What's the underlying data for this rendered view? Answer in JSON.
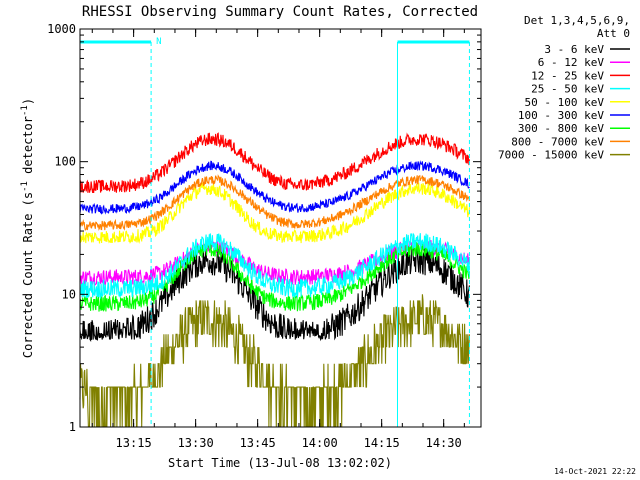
{
  "chart_data": {
    "type": "line",
    "title": "RHESSI Observing Summary Count Rates, Corrected",
    "xlabel": "Start Time (13-Jul-08 13:02:02)",
    "ylabel_prefix": "Corrected Count Rate (s",
    "ylabel_sup1": "-1",
    "ylabel_mid": " detector",
    "ylabel_sup2": "-1",
    "ylabel_suffix": ")",
    "yscale": "log",
    "ylim": [
      1,
      1000
    ],
    "xlim_minutes": [
      0,
      97
    ],
    "x_ticks": [
      {
        "minute": 12.97,
        "label": "13:15"
      },
      {
        "minute": 27.97,
        "label": "13:30"
      },
      {
        "minute": 42.97,
        "label": "13:45"
      },
      {
        "minute": 57.97,
        "label": "14:00"
      },
      {
        "minute": 72.97,
        "label": "14:15"
      },
      {
        "minute": 87.97,
        "label": "14:30"
      }
    ],
    "y_ticks": [
      {
        "value": 1,
        "label": "1"
      },
      {
        "value": 10,
        "label": "10"
      },
      {
        "value": 100,
        "label": "100"
      },
      {
        "value": 1000,
        "label": "1000"
      }
    ],
    "legend": {
      "header1": "Det 1,3,4,5,6,9,",
      "header2": "Att 0",
      "placement": "right"
    },
    "series": [
      {
        "name": "3 - 6 keV",
        "color": "#000000",
        "base": 5,
        "peak": 18,
        "c1": 31,
        "w1": 7,
        "c2": 82,
        "w2": 8.5,
        "noise": 0.11,
        "floor": 4.5
      },
      {
        "name": "6 - 12 keV",
        "color": "#ff00ff",
        "base": 13.5,
        "peak": 23,
        "c1": 32,
        "w1": 6,
        "c2": 82.5,
        "w2": 9,
        "noise": 0.06,
        "floor": 0
      },
      {
        "name": "12 - 25 keV",
        "color": "#ff0000",
        "base": 65,
        "peak": 148,
        "c1": 32,
        "w1": 7,
        "c2": 82,
        "w2": 10,
        "noise": 0.05,
        "floor": 0
      },
      {
        "name": "25 - 50 keV",
        "color": "#00ffff",
        "base": 11,
        "peak": 25,
        "c1": 32,
        "w1": 6,
        "c2": 82,
        "w2": 9,
        "noise": 0.07,
        "floor": 0
      },
      {
        "name": "50 - 100 keV",
        "color": "#ffff00",
        "base": 27,
        "peak": 63,
        "c1": 31,
        "w1": 6,
        "c2": 82,
        "w2": 9,
        "noise": 0.05,
        "floor": 0
      },
      {
        "name": "100 - 300 keV",
        "color": "#0000ff",
        "base": 44,
        "peak": 93,
        "c1": 32,
        "w1": 7,
        "c2": 82,
        "w2": 10,
        "noise": 0.035,
        "floor": 0
      },
      {
        "name": "300 - 800 keV",
        "color": "#00ff00",
        "base": 8.5,
        "peak": 22,
        "c1": 31,
        "w1": 6,
        "c2": 82,
        "w2": 9,
        "noise": 0.06,
        "floor": 0
      },
      {
        "name": "800 - 7000 keV",
        "color": "#ff8000",
        "base": 33,
        "peak": 73,
        "c1": 32,
        "w1": 7,
        "c2": 82,
        "w2": 10,
        "noise": 0.035,
        "floor": 0
      },
      {
        "name": "7000 - 15000 keV",
        "color": "#808000",
        "base": 1.6,
        "peak": 6.5,
        "c1": 31,
        "w1": 7,
        "c2": 82.5,
        "w2": 9,
        "noise": 0.18,
        "floor": 1
      }
    ],
    "saa_intervals": [
      {
        "start_minute": 0,
        "end_minute": 17.2,
        "label": "N"
      },
      {
        "start_minute": 76.8,
        "end_minute": 94.2,
        "label": ""
      }
    ],
    "saa_color": "#00ffff",
    "footer_date": "14-Oct-2021 22:22"
  }
}
